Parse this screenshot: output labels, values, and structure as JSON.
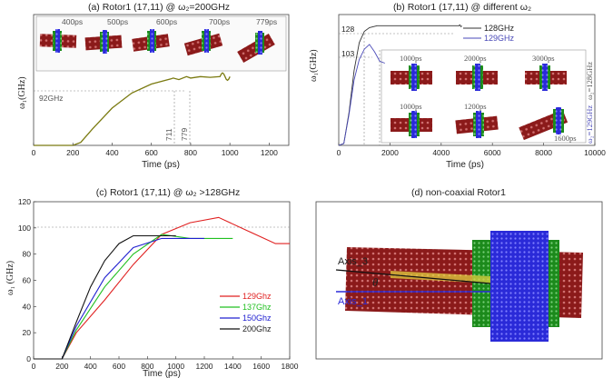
{
  "chart_data": [
    {
      "type": "line",
      "title": "(a) Rotor1 (17,11) @ ω₂=200GHz",
      "xlabel": "Time (ps)",
      "ylabel": "ω₁(GHz)",
      "xlim": [
        0,
        1300
      ],
      "ylim": [
        0,
        175
      ],
      "xticks": [
        "0",
        "200",
        "400",
        "600",
        "800",
        "1000",
        "1200"
      ],
      "series": [
        {
          "color": "#7a7a10",
          "x": [
            0,
            200,
            240,
            300,
            400,
            500,
            600,
            700,
            711,
            740,
            779,
            800,
            850,
            900,
            950
          ],
          "y": [
            0,
            0,
            4,
            22,
            50,
            70,
            82,
            89,
            90,
            88,
            92,
            90,
            92,
            91,
            92
          ]
        }
      ],
      "annotations": [
        {
          "text": "92GHz",
          "y": 92
        },
        {
          "text": "711",
          "x": 711
        },
        {
          "text": "779",
          "x": 779
        }
      ],
      "inset_labels": [
        "400ps",
        "500ps",
        "600ps",
        "700ps",
        "779ps"
      ]
    },
    {
      "type": "line",
      "title": "(b) Rotor1 (17,11) @ different ω₂",
      "xlabel": "Time (ps)",
      "ylabel": "ω₁(GHz)",
      "xlim": [
        0,
        10000
      ],
      "ylim": [
        0,
        140
      ],
      "xticks": [
        "0",
        "2000",
        "4000",
        "6000",
        "8000",
        "10000"
      ],
      "legend": [
        "128GHz",
        "129GHz"
      ],
      "series": [
        {
          "name": "128GHz",
          "color": "#333333",
          "x": [
            0,
            200,
            400,
            600,
            800,
            1000,
            1200,
            1500,
            2000,
            3000,
            4000,
            4700
          ],
          "y": [
            0,
            2,
            35,
            80,
            110,
            122,
            126,
            128,
            128,
            128,
            128,
            128
          ]
        },
        {
          "name": "129GHz",
          "color": "#4a4ab8",
          "x": [
            0,
            200,
            400,
            600,
            800,
            1000,
            1200,
            1400,
            1600,
            1800
          ],
          "y": [
            0,
            2,
            33,
            70,
            92,
            103,
            108,
            100,
            90,
            88
          ]
        }
      ],
      "annotations": [
        {
          "text": "128",
          "y": 128
        },
        {
          "text": "103",
          "y": 103
        },
        {
          "text": "1000ps",
          "x": 1000
        },
        {
          "text": "1600ps",
          "x": 1600
        }
      ],
      "inset_labels": [
        "1000ps",
        "2000ps",
        "3000ps",
        "1000ps",
        "1200ps",
        "1600ps"
      ],
      "side_labels": [
        "ω₂=128GHz",
        "ω₂=129GHz"
      ]
    },
    {
      "type": "line",
      "title": "(c) Rotor1 (17,11) @ ω₂ >128GHz",
      "xlabel": "Time (ps)",
      "ylabel": "ω₁ (GHz)",
      "xlim": [
        0,
        1800
      ],
      "ylim": [
        0,
        120
      ],
      "xticks": [
        "0",
        "200",
        "400",
        "600",
        "800",
        "1000",
        "1200",
        "1400",
        "1600",
        "1800"
      ],
      "yticks": [
        "0",
        "20",
        "40",
        "60",
        "80",
        "100",
        "120"
      ],
      "legend": [
        "129Ghz",
        "137Ghz",
        "150Ghz",
        "200Ghz"
      ],
      "series": [
        {
          "name": "129Ghz",
          "color": "#e02020",
          "x": [
            0,
            200,
            300,
            500,
            700,
            900,
            1100,
            1300,
            1500,
            1700,
            1800
          ],
          "y": [
            0,
            0,
            20,
            45,
            72,
            95,
            104,
            108,
            98,
            88,
            88
          ]
        },
        {
          "name": "137Ghz",
          "color": "#20c020",
          "x": [
            0,
            200,
            300,
            500,
            700,
            900,
            1100,
            1300,
            1400
          ],
          "y": [
            0,
            0,
            22,
            55,
            80,
            95,
            92,
            92,
            92
          ]
        },
        {
          "name": "150Ghz",
          "color": "#2020d0",
          "x": [
            0,
            200,
            300,
            500,
            700,
            900,
            1000,
            1100,
            1200
          ],
          "y": [
            0,
            0,
            25,
            62,
            85,
            92,
            92,
            92,
            92
          ]
        },
        {
          "name": "200Ghz",
          "color": "#111111",
          "x": [
            0,
            200,
            300,
            400,
            500,
            600,
            700,
            800,
            900,
            1000
          ],
          "y": [
            0,
            0,
            28,
            55,
            75,
            88,
            94,
            94,
            94,
            94
          ]
        }
      ]
    },
    {
      "type": "other",
      "title": "(d) non-coaxial Rotor1",
      "labels": {
        "axis3": "Axis_3",
        "theta": "θ",
        "axis1": "Axis_1"
      }
    }
  ]
}
